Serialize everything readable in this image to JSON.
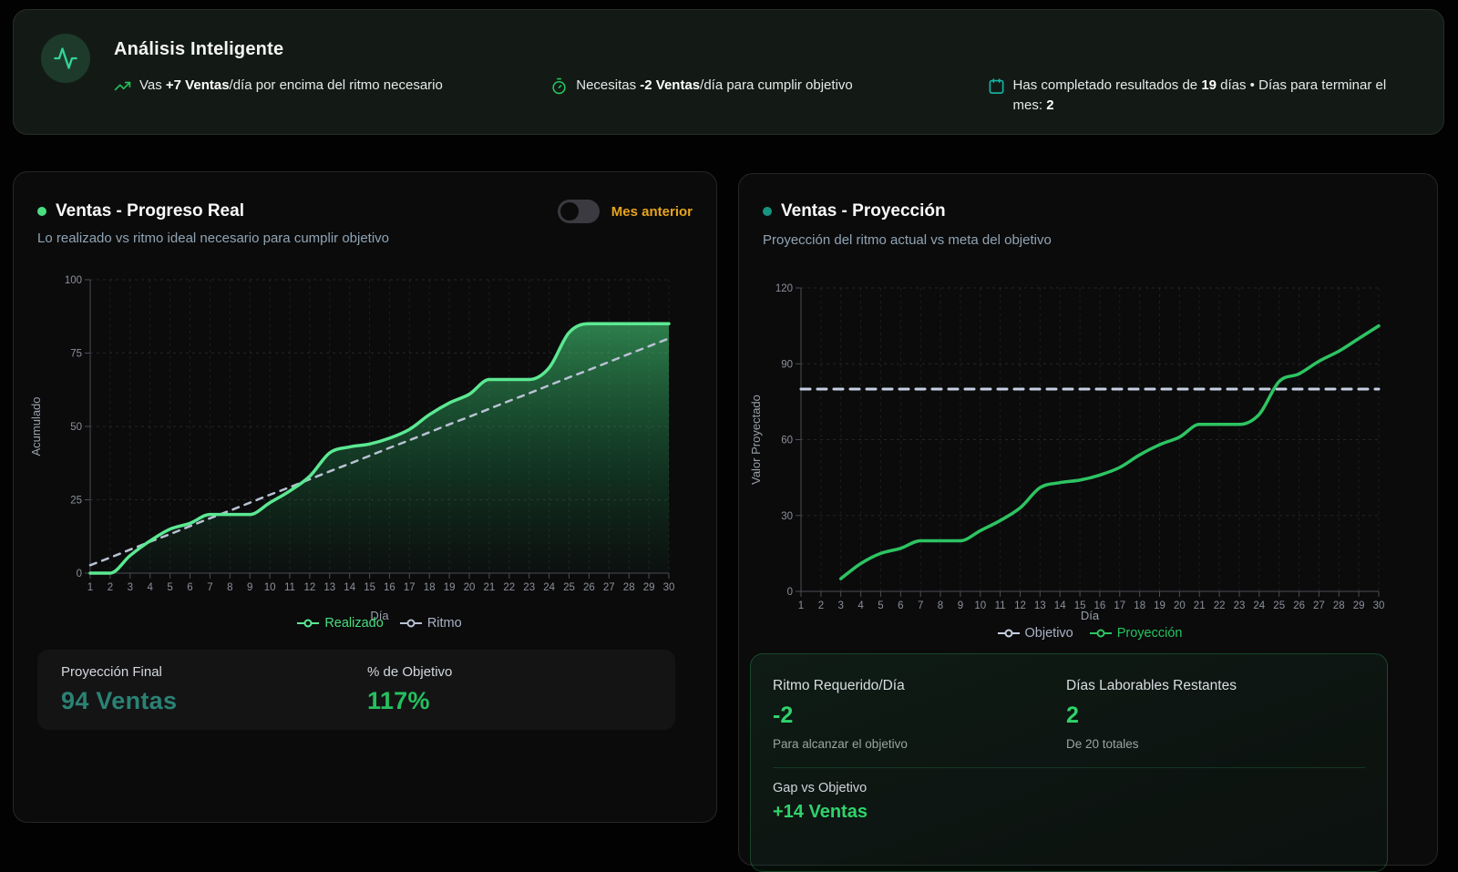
{
  "colors": {
    "accent_green": "#22c55e",
    "mint_line": "#5ce892",
    "gray_dash": "#b9c1d4",
    "amber": "#e7a41c",
    "teal": "#14b8a6",
    "left_dot": "#4ade80",
    "right_dot": "#169482",
    "projection_final_value": "#2b8274",
    "pct_value": "#25c05f",
    "panel_green_value": "#2fd36b"
  },
  "header": {
    "title": "Análisis Inteligente",
    "icon": "activity-pulse-icon",
    "insights": [
      {
        "icon": "trending-up-icon",
        "segments": [
          {
            "t": "Vas ",
            "b": false
          },
          {
            "t": "+7 Ventas",
            "b": true
          },
          {
            "t": "/día por encima del ritmo necesario",
            "b": false
          }
        ]
      },
      {
        "icon": "timer-icon",
        "segments": [
          {
            "t": "Necesitas ",
            "b": false
          },
          {
            "t": "-2 Ventas",
            "b": true
          },
          {
            "t": "/día para cumplir objetivo",
            "b": false
          }
        ]
      },
      {
        "icon": "calendar-icon",
        "segments": [
          {
            "t": "Has completado resultados de ",
            "b": false
          },
          {
            "t": "19",
            "b": true
          },
          {
            "t": " días • Días para terminar el mes: ",
            "b": false
          },
          {
            "t": "2",
            "b": true
          }
        ]
      }
    ]
  },
  "left_card": {
    "title": "Ventas - Progreso Real",
    "subtitle": "Lo realizado vs ritmo ideal necesario para cumplir objetivo",
    "toggle_label": "Mes anterior",
    "toggle_state": "off",
    "stats": [
      {
        "label": "Proyección Final",
        "value": "94 Ventas"
      },
      {
        "label": "% de Objetivo",
        "value": "117%"
      }
    ]
  },
  "right_card": {
    "title": "Ventas - Proyección",
    "subtitle": "Proyección del ritmo actual vs meta del objetivo",
    "stats": [
      {
        "label": "Ritmo Requerido/Día",
        "value": "-2",
        "sub": "Para alcanzar el objetivo"
      },
      {
        "label": "Días Laborables Restantes",
        "value": "2",
        "sub": "De 20 totales"
      }
    ],
    "gap": {
      "label": "Gap vs Objetivo",
      "value": "+14 Ventas"
    }
  },
  "chart_data": [
    {
      "type": "area",
      "title": "Ventas - Progreso Real",
      "xlabel": "Día",
      "ylabel": "Acumulado",
      "xlim": [
        1,
        30
      ],
      "ylim": [
        0,
        100
      ],
      "yticks": [
        0,
        25,
        50,
        75,
        100
      ],
      "grid": true,
      "legend_position": "bottom",
      "x": [
        1,
        2,
        3,
        4,
        5,
        6,
        7,
        8,
        9,
        10,
        11,
        12,
        13,
        14,
        15,
        16,
        17,
        18,
        19,
        20,
        21,
        22,
        23,
        24,
        25,
        26,
        27,
        28,
        29,
        30
      ],
      "series": [
        {
          "name": "Realizado",
          "color": "#5ce892",
          "legend_color": "#4ade80",
          "width": 3.5,
          "area": true,
          "values": [
            0,
            0,
            6,
            11,
            15,
            17,
            20,
            20,
            20,
            24,
            28,
            33,
            41,
            43,
            44,
            46,
            49,
            54,
            58,
            61,
            66,
            66,
            66,
            70,
            82,
            85,
            85,
            85,
            85,
            85
          ]
        },
        {
          "name": "Ritmo",
          "color": "#b9c1d4",
          "legend_color": "#a9b2c4",
          "width": 2.5,
          "dash": "7 7",
          "values": [
            2.7,
            5.3,
            8,
            10.7,
            13.3,
            16,
            18.7,
            21.3,
            24,
            26.7,
            29.3,
            32,
            34.7,
            37.3,
            40,
            42.7,
            45.3,
            48,
            50.7,
            53.3,
            56,
            58.7,
            61.3,
            64,
            66.7,
            69.3,
            72,
            74.7,
            77.3,
            80
          ]
        }
      ]
    },
    {
      "type": "line",
      "title": "Ventas - Proyección",
      "xlabel": "Día",
      "ylabel": "Valor Proyectado",
      "xlim": [
        1,
        30
      ],
      "ylim": [
        0,
        120
      ],
      "yticks": [
        0,
        30,
        60,
        90,
        120
      ],
      "grid": true,
      "legend_position": "bottom",
      "x": [
        1,
        2,
        3,
        4,
        5,
        6,
        7,
        8,
        9,
        10,
        11,
        12,
        13,
        14,
        15,
        16,
        17,
        18,
        19,
        20,
        21,
        22,
        23,
        24,
        25,
        26,
        27,
        28,
        29,
        30
      ],
      "series": [
        {
          "name": "Objetivo",
          "color": "#c7cfe2",
          "legend_color": "#a9b2c4",
          "width": 3,
          "dash": "10 8",
          "values": [
            80,
            80,
            80,
            80,
            80,
            80,
            80,
            80,
            80,
            80,
            80,
            80,
            80,
            80,
            80,
            80,
            80,
            80,
            80,
            80,
            80,
            80,
            80,
            80,
            80,
            80,
            80,
            80,
            80,
            80
          ]
        },
        {
          "name": "Proyección",
          "color": "#2dc462",
          "legend_color": "#22c55e",
          "width": 3.5,
          "values": [
            null,
            null,
            5,
            11,
            15,
            17,
            20,
            20,
            20,
            24,
            28,
            33,
            41,
            43,
            44,
            46,
            49,
            54,
            58,
            61,
            66,
            66,
            66,
            70,
            83,
            86,
            91,
            95,
            100,
            105
          ]
        }
      ]
    }
  ]
}
